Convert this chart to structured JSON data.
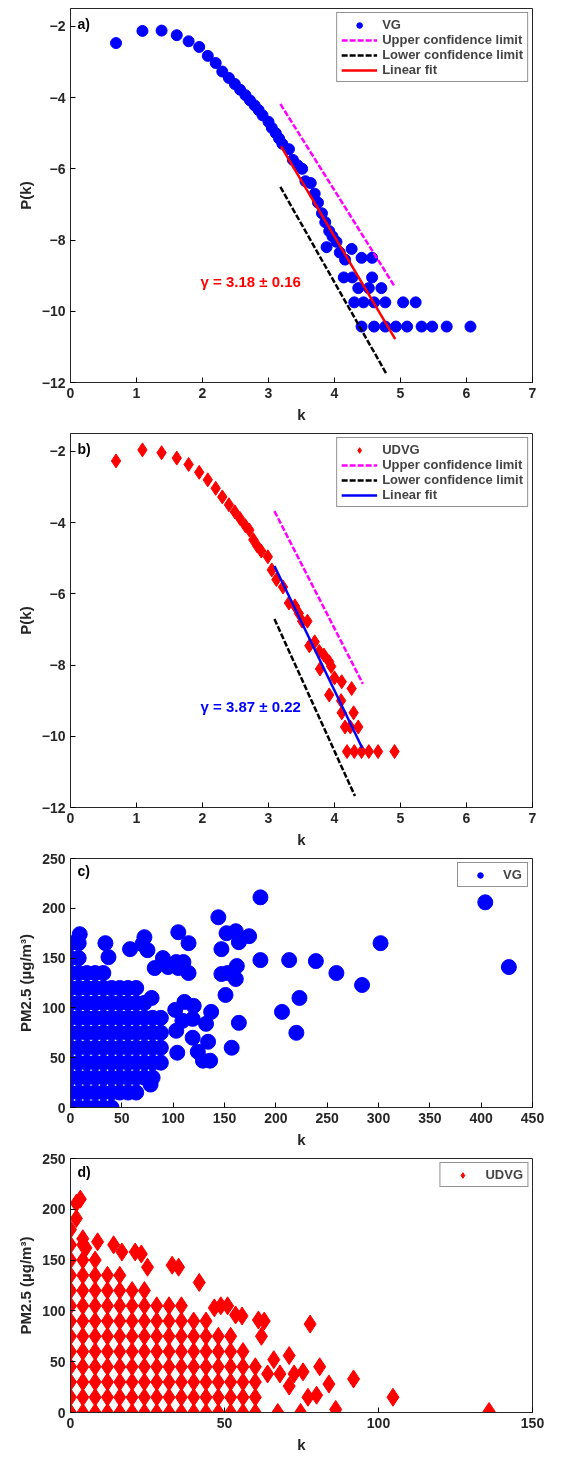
{
  "chart_data": [
    {
      "type": "scatter",
      "title": "a)",
      "xlabel": "k",
      "ylabel": "P(k)",
      "xlim": [
        0,
        7
      ],
      "ylim": [
        -12,
        -1.5
      ],
      "xticks": [
        0,
        1,
        2,
        3,
        4,
        5,
        6,
        7
      ],
      "yticks": [
        -12,
        -10,
        -8,
        -6,
        -4,
        -2
      ],
      "grid": false,
      "legend": "top right",
      "series": [
        {
          "name": "VG",
          "marker": "circle",
          "color": "#0000ff",
          "x": [
            0.69,
            1.09,
            1.38,
            1.61,
            1.79,
            1.95,
            2.08,
            2.2,
            2.3,
            2.4,
            2.49,
            2.57,
            2.65,
            2.72,
            2.79,
            2.85,
            2.91,
            3.0,
            3.05,
            3.11,
            3.16,
            3.21,
            3.31,
            3.37,
            3.44,
            3.51,
            3.56,
            3.64,
            3.7,
            3.75,
            3.81,
            3.86,
            3.92,
            3.97,
            3.88,
            4.03,
            4.08,
            4.16,
            4.26,
            4.41,
            4.57,
            4.14,
            4.27,
            4.57,
            4.36,
            4.52,
            4.71,
            4.3,
            4.44,
            4.6,
            4.77,
            5.04,
            5.23,
            4.41,
            4.6,
            4.77,
            4.93,
            5.1,
            5.32,
            5.48,
            5.7,
            6.06
          ],
          "values": [
            -2.47,
            -2.13,
            -2.12,
            -2.25,
            -2.42,
            -2.58,
            -2.83,
            -3.03,
            -3.27,
            -3.45,
            -3.62,
            -3.78,
            -3.93,
            -4.08,
            -4.22,
            -4.35,
            -4.5,
            -4.68,
            -4.85,
            -5.0,
            -5.15,
            -5.3,
            -5.45,
            -5.75,
            -5.9,
            -6.0,
            -6.35,
            -6.4,
            -6.7,
            -6.95,
            -7.25,
            -7.5,
            -7.75,
            -7.9,
            -8.2,
            -8.05,
            -8.35,
            -8.55,
            -8.25,
            -8.5,
            -8.5,
            -9.05,
            -9.05,
            -9.05,
            -9.35,
            -9.35,
            -9.35,
            -9.75,
            -9.75,
            -9.75,
            -9.75,
            -9.75,
            -9.75,
            -10.43,
            -10.43,
            -10.43,
            -10.43,
            -10.43,
            -10.43,
            -10.43,
            -10.43,
            -10.43
          ]
        },
        {
          "name": "Upper confidence limit",
          "type": "line",
          "line_style": "dashed",
          "color": "#ff00ff",
          "x": [
            3.18,
            4.91
          ],
          "values": [
            -4.18,
            -9.3
          ]
        },
        {
          "name": "Lower confidence limit",
          "type": "line",
          "line_style": "dashed",
          "color": "#000000",
          "x": [
            3.18,
            4.79
          ],
          "values": [
            -6.51,
            -11.77
          ]
        },
        {
          "name": "Linear fit",
          "type": "line",
          "line_style": "solid",
          "color": "#ff0000",
          "x": [
            3.19,
            4.92
          ],
          "values": [
            -5.37,
            -10.78
          ]
        }
      ],
      "annotations": [
        "γ = 3.18 ± 0.16"
      ]
    },
    {
      "type": "scatter",
      "title": "b)",
      "xlabel": "k",
      "ylabel": "P(k)",
      "xlim": [
        0,
        7
      ],
      "ylim": [
        -12,
        -1.5
      ],
      "xticks": [
        0,
        1,
        2,
        3,
        4,
        5,
        6,
        7
      ],
      "yticks": [
        -12,
        -10,
        -8,
        -6,
        -4,
        -2
      ],
      "grid": false,
      "legend": "top right",
      "series": [
        {
          "name": "UDVG",
          "marker": "diamond",
          "color": "#ff0000",
          "x": [
            0.69,
            1.09,
            1.38,
            1.61,
            1.79,
            1.95,
            2.08,
            2.2,
            2.3,
            2.4,
            2.49,
            2.57,
            2.65,
            2.71,
            2.77,
            2.83,
            2.89,
            2.99,
            3.05,
            3.12,
            3.22,
            3.31,
            3.4,
            3.46,
            3.51,
            3.59,
            3.62,
            3.7,
            3.77,
            3.84,
            3.78,
            3.92,
            3.95,
            4.0,
            4.11,
            3.92,
            4.26,
            4.1,
            4.11,
            4.29,
            4.16,
            4.24,
            4.36,
            4.19,
            4.3,
            4.41,
            4.52,
            4.66,
            4.91
          ],
          "values": [
            -2.27,
            -1.96,
            -2.04,
            -2.19,
            -2.37,
            -2.59,
            -2.8,
            -3.04,
            -3.28,
            -3.5,
            -3.7,
            -3.89,
            -4.09,
            -4.21,
            -4.48,
            -4.66,
            -4.8,
            -4.96,
            -5.33,
            -5.6,
            -5.81,
            -6.26,
            -6.34,
            -6.55,
            -6.77,
            -6.77,
            -7.46,
            -7.35,
            -7.62,
            -7.72,
            -8.11,
            -7.91,
            -8.04,
            -8.36,
            -8.47,
            -8.84,
            -8.66,
            -9.0,
            -9.34,
            -9.34,
            -9.74,
            -9.74,
            -9.74,
            -10.43,
            -10.43,
            -10.43,
            -10.43,
            -10.43,
            -10.43
          ]
        },
        {
          "name": "Upper confidence limit",
          "type": "line",
          "line_style": "dashed",
          "color": "#ff00ff",
          "x": [
            3.09,
            4.43
          ],
          "values": [
            -3.68,
            -8.53
          ]
        },
        {
          "name": "Lower confidence limit",
          "type": "line",
          "line_style": "dashed",
          "color": "#000000",
          "x": [
            3.09,
            4.31
          ],
          "values": [
            -6.71,
            -11.68
          ]
        },
        {
          "name": "Linear fit",
          "type": "line",
          "line_style": "solid",
          "color": "#0000ff",
          "x": [
            3.09,
            4.42
          ],
          "values": [
            -5.22,
            -10.33
          ]
        }
      ],
      "annotations": [
        "γ = 3.87 ± 0.22"
      ]
    },
    {
      "type": "scatter",
      "title": "c)",
      "xlabel": "k",
      "ylabel": "PM2.5 (µg/m³)",
      "xlim": [
        0,
        450
      ],
      "ylim": [
        0,
        250
      ],
      "xticks": [
        0,
        50,
        100,
        150,
        200,
        250,
        300,
        350,
        400,
        450
      ],
      "yticks": [
        0,
        50,
        100,
        150,
        200,
        250
      ],
      "grid": false,
      "legend": "top right",
      "series": [
        {
          "name": "VG",
          "marker": "circle",
          "color": "#0000ff",
          "x": [
            0,
            0,
            0,
            0,
            0,
            0,
            0,
            0,
            0,
            0,
            0,
            0,
            8,
            8,
            8,
            8,
            8,
            8,
            8,
            8,
            8,
            8,
            8,
            8,
            16,
            16,
            16,
            16,
            16,
            16,
            16,
            16,
            16,
            16,
            24,
            24,
            24,
            24,
            24,
            24,
            24,
            24,
            24,
            24,
            32,
            32,
            32,
            32,
            32,
            32,
            32,
            32,
            32,
            32,
            40,
            40,
            40,
            40,
            40,
            40,
            40,
            40,
            40,
            48,
            48,
            48,
            48,
            48,
            48,
            48,
            48,
            56,
            56,
            56,
            56,
            56,
            56,
            56,
            56,
            64,
            64,
            64,
            64,
            64,
            64,
            64,
            64,
            72,
            72,
            72,
            72,
            72,
            72,
            80,
            80,
            80,
            80,
            80,
            88,
            88,
            88,
            88,
            185,
            404,
            144,
            152,
            161,
            174,
            164,
            302,
            147,
            185,
            213,
            239,
            427,
            162,
            147,
            153,
            161,
            259,
            284,
            151,
            223,
            206,
            164,
            220,
            157,
            137,
            132,
            119,
            120,
            111,
            109,
            119,
            134,
            124,
            129,
            136,
            105,
            115,
            115,
            110,
            103,
            105,
            102,
            103,
            104,
            95,
            90,
            82,
            79,
            78,
            72,
            70,
            75,
            58,
            34,
            37,
            9
          ],
          "values": [
            0,
            15,
            30,
            45,
            60,
            75,
            90,
            105,
            120,
            135,
            150,
            165,
            0,
            15,
            30,
            45,
            60,
            75,
            90,
            105,
            120,
            135,
            150,
            165,
            0,
            15,
            30,
            45,
            60,
            75,
            90,
            105,
            120,
            135,
            0,
            15,
            30,
            45,
            60,
            75,
            90,
            105,
            120,
            135,
            0,
            15,
            30,
            45,
            60,
            75,
            90,
            105,
            120,
            135,
            0,
            15,
            30,
            45,
            60,
            75,
            90,
            105,
            120,
            15,
            30,
            45,
            60,
            75,
            90,
            105,
            120,
            15,
            30,
            45,
            60,
            75,
            90,
            105,
            120,
            15,
            30,
            45,
            60,
            75,
            90,
            105,
            120,
            30,
            45,
            60,
            75,
            90,
            105,
            30,
            45,
            60,
            75,
            90,
            45,
            60,
            75,
            90,
            211,
            206,
            191,
            175,
            177,
            172,
            166,
            165,
            159,
            148,
            148,
            147,
            141,
            142,
            134,
            135,
            129,
            135,
            123,
            113,
            110,
            96,
            85,
            75,
            60,
            96,
            84,
            89,
            102,
            106,
            87,
            70,
            66,
            56,
            47,
            47,
            176,
            165,
            135,
            146,
            146,
            140,
            98,
            77,
            55,
            141,
            150,
            140,
            110,
            23,
            171,
            164,
            158,
            159,
            165,
            151,
            174
          ]
        }
      ]
    },
    {
      "type": "scatter",
      "title": "d)",
      "xlabel": "k",
      "ylabel": "PM2.5 (µg/m³)",
      "xlim": [
        0,
        150
      ],
      "ylim": [
        0,
        250
      ],
      "xticks": [
        0,
        50,
        100,
        150
      ],
      "yticks": [
        0,
        50,
        100,
        150,
        200,
        250
      ],
      "grid": false,
      "legend": "top right",
      "series": [
        {
          "name": "UDVG",
          "marker": "diamond",
          "color": "#ff0000",
          "x": [
            0,
            0,
            0,
            0,
            0,
            0,
            0,
            0,
            0,
            0,
            0,
            0,
            0,
            4,
            4,
            4,
            4,
            4,
            4,
            4,
            4,
            4,
            4,
            4,
            4,
            8,
            8,
            8,
            8,
            8,
            8,
            8,
            8,
            8,
            8,
            8,
            12,
            12,
            12,
            12,
            12,
            12,
            12,
            12,
            12,
            12,
            16,
            16,
            16,
            16,
            16,
            16,
            16,
            16,
            16,
            16,
            20,
            20,
            20,
            20,
            20,
            20,
            20,
            20,
            20,
            24,
            24,
            24,
            24,
            24,
            24,
            24,
            24,
            24,
            28,
            28,
            28,
            28,
            28,
            28,
            28,
            28,
            32,
            32,
            32,
            32,
            32,
            32,
            32,
            32,
            36,
            36,
            36,
            36,
            36,
            36,
            36,
            36,
            40,
            40,
            40,
            40,
            40,
            40,
            40,
            44,
            44,
            44,
            44,
            44,
            44,
            44,
            48,
            48,
            48,
            48,
            48,
            48,
            52,
            52,
            52,
            52,
            52,
            52,
            56,
            56,
            56,
            56,
            56,
            60,
            60,
            60,
            60,
            135.9,
            104.7,
            91.9,
            86.1,
            83.9,
            80.9,
            77.8,
            79.9,
            77.1,
            75.5,
            72.6,
            71,
            71,
            68,
            66,
            62.9,
            61,
            62,
            64,
            74.7,
            67.3,
            3.2,
            1.9,
            1.9,
            55.7,
            53.6,
            51,
            48.8,
            46.7,
            41.8,
            35.1,
            33,
            25,
            23,
            21,
            16.7,
            14,
            8.8,
            4,
            5
          ],
          "values": [
            0,
            15,
            30,
            45,
            60,
            75,
            90,
            105,
            120,
            135,
            150,
            165,
            180,
            0,
            15,
            30,
            45,
            60,
            75,
            90,
            105,
            120,
            135,
            150,
            165,
            0,
            15,
            30,
            45,
            60,
            75,
            90,
            105,
            120,
            135,
            150,
            0,
            15,
            30,
            45,
            60,
            75,
            90,
            105,
            120,
            135,
            0,
            15,
            30,
            45,
            60,
            75,
            90,
            105,
            120,
            135,
            0,
            15,
            30,
            45,
            60,
            75,
            90,
            105,
            120,
            0,
            15,
            30,
            45,
            60,
            75,
            90,
            105,
            120,
            0,
            15,
            30,
            45,
            60,
            75,
            90,
            105,
            0,
            15,
            30,
            45,
            60,
            75,
            90,
            105,
            0,
            15,
            30,
            45,
            60,
            75,
            90,
            105,
            0,
            15,
            30,
            45,
            60,
            75,
            90,
            0,
            15,
            30,
            45,
            60,
            75,
            90,
            0,
            15,
            30,
            45,
            60,
            75,
            0,
            15,
            30,
            45,
            60,
            75,
            0,
            15,
            30,
            45,
            60,
            0,
            15,
            30,
            45,
            1,
            15,
            33,
            3,
            28,
            45,
            87,
            17,
            15,
            40,
            38,
            56,
            26,
            38,
            52,
            90,
            91,
            75,
            38,
            0,
            0,
            210,
            206,
            191,
            95,
            96,
            105,
            105,
            103,
            128,
            143,
            145,
            143,
            156,
            158,
            158,
            165,
            168,
            171,
            162
          ]
        }
      ]
    }
  ]
}
